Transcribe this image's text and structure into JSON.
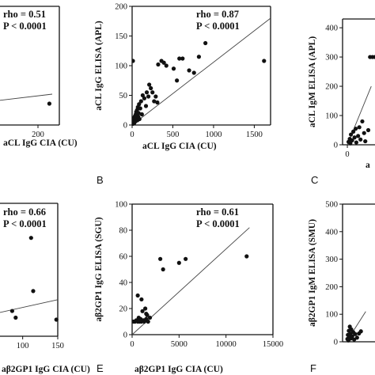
{
  "colors": {
    "ink": "#111111",
    "line": "#444444",
    "background": "#ffffff"
  },
  "chart_data": [
    {
      "panel": "A",
      "type": "scatter",
      "letter": "",
      "xlabel": "aCL IgG CIA (CU)",
      "ylabel": "",
      "xlim": [
        -40,
        260
      ],
      "ylim": [
        0,
        200
      ],
      "xticks": [
        200
      ],
      "yticks": [],
      "stats": [
        "rho = 0.51",
        "P < 0.0001"
      ],
      "trend": {
        "x0": 0,
        "y0": 35,
        "x1": 240,
        "y1": 52
      },
      "points": [
        {
          "x": 5,
          "y": 42
        },
        {
          "x": 232,
          "y": 36
        }
      ]
    },
    {
      "panel": "B",
      "type": "scatter",
      "letter": "B",
      "xlabel": "aCL IgG CIA (CU)",
      "ylabel": "aCL IgG ELISA (APL)",
      "xlim": [
        0,
        1700
      ],
      "ylim": [
        0,
        200
      ],
      "xticks": [
        0,
        500,
        1000,
        1500
      ],
      "yticks": [
        0,
        50,
        100,
        150,
        200
      ],
      "stats": [
        "rho = 0.87",
        "P < 0.0001"
      ],
      "trend": {
        "x0": 0,
        "y0": 0,
        "x1": 1700,
        "y1": 180
      },
      "points": [
        {
          "x": 8,
          "y": 2
        },
        {
          "x": 12,
          "y": 5
        },
        {
          "x": 15,
          "y": 8
        },
        {
          "x": 20,
          "y": 12
        },
        {
          "x": 25,
          "y": 3
        },
        {
          "x": 30,
          "y": 10
        },
        {
          "x": 35,
          "y": 15
        },
        {
          "x": 40,
          "y": 6
        },
        {
          "x": 45,
          "y": 18
        },
        {
          "x": 50,
          "y": 22
        },
        {
          "x": 55,
          "y": 12
        },
        {
          "x": 60,
          "y": 25
        },
        {
          "x": 65,
          "y": 8
        },
        {
          "x": 70,
          "y": 30
        },
        {
          "x": 75,
          "y": 14
        },
        {
          "x": 80,
          "y": 20
        },
        {
          "x": 85,
          "y": 35
        },
        {
          "x": 90,
          "y": 10
        },
        {
          "x": 100,
          "y": 28
        },
        {
          "x": 110,
          "y": 40
        },
        {
          "x": 120,
          "y": 18
        },
        {
          "x": 130,
          "y": 50
        },
        {
          "x": 150,
          "y": 45
        },
        {
          "x": 170,
          "y": 32
        },
        {
          "x": 180,
          "y": 55
        },
        {
          "x": 200,
          "y": 48
        },
        {
          "x": 210,
          "y": 68
        },
        {
          "x": 230,
          "y": 62
        },
        {
          "x": 250,
          "y": 55
        },
        {
          "x": 270,
          "y": 40
        },
        {
          "x": 290,
          "y": 48
        },
        {
          "x": 310,
          "y": 38
        },
        {
          "x": 320,
          "y": 102
        },
        {
          "x": 360,
          "y": 108
        },
        {
          "x": 390,
          "y": 105
        },
        {
          "x": 420,
          "y": 100
        },
        {
          "x": 510,
          "y": 95
        },
        {
          "x": 550,
          "y": 75
        },
        {
          "x": 580,
          "y": 112
        },
        {
          "x": 620,
          "y": 112
        },
        {
          "x": 700,
          "y": 92
        },
        {
          "x": 760,
          "y": 88
        },
        {
          "x": 820,
          "y": 115
        },
        {
          "x": 900,
          "y": 138
        },
        {
          "x": 10,
          "y": 108
        },
        {
          "x": 1620,
          "y": 108
        }
      ]
    },
    {
      "panel": "C",
      "type": "scatter",
      "letter": "C",
      "xlabel": "a",
      "ylabel": "aCL IgM ELISA (APL)",
      "xlim": [
        -8,
        160
      ],
      "ylim": [
        0,
        430
      ],
      "xticks": [
        0
      ],
      "yticks": [
        0,
        100,
        200,
        300,
        400
      ],
      "stats": [],
      "trend": {
        "x0": 0,
        "y0": 0,
        "x1": 40,
        "y1": 200
      },
      "points": [
        {
          "x": 2,
          "y": 10
        },
        {
          "x": 4,
          "y": 20
        },
        {
          "x": 5,
          "y": 5
        },
        {
          "x": 6,
          "y": 35
        },
        {
          "x": 8,
          "y": 15
        },
        {
          "x": 10,
          "y": 45
        },
        {
          "x": 12,
          "y": 25
        },
        {
          "x": 14,
          "y": 55
        },
        {
          "x": 15,
          "y": 8
        },
        {
          "x": 18,
          "y": 30
        },
        {
          "x": 20,
          "y": 60
        },
        {
          "x": 22,
          "y": 18
        },
        {
          "x": 25,
          "y": 80
        },
        {
          "x": 28,
          "y": 40
        },
        {
          "x": 30,
          "y": 12
        },
        {
          "x": 35,
          "y": 50
        },
        {
          "x": 38,
          "y": 300
        },
        {
          "x": 42,
          "y": 300
        },
        {
          "x": 46,
          "y": 300
        },
        {
          "x": 75,
          "y": 300
        },
        {
          "x": 80,
          "y": 300
        }
      ]
    },
    {
      "panel": "D",
      "type": "scatter",
      "letter": "",
      "xlabel": "aβ2GP1 IgG CIA (CU)",
      "ylabel": "",
      "xlim": [
        0,
        150
      ],
      "ylim": [
        0,
        200
      ],
      "xticks": [
        100,
        150
      ],
      "yticks": [],
      "stats": [
        "rho = 0.66",
        "P < 0.0001"
      ],
      "trend": {
        "x0": 0,
        "y0": 20,
        "x1": 150,
        "y1": 55
      },
      "points": [
        {
          "x": 85,
          "y": 38
        },
        {
          "x": 90,
          "y": 28
        },
        {
          "x": 112,
          "y": 148
        },
        {
          "x": 115,
          "y": 68
        },
        {
          "x": 148,
          "y": 25
        }
      ]
    },
    {
      "panel": "E",
      "type": "scatter",
      "letter": "E",
      "xlabel": "aβ2GP1 IgG CIA (CU)",
      "ylabel": "aβ2GP1 IgG ELISA (SGU)",
      "xlim": [
        0,
        15000
      ],
      "ylim": [
        0,
        100
      ],
      "xticks": [
        0,
        5000,
        10000,
        15000
      ],
      "yticks": [
        0,
        20,
        40,
        60,
        80,
        100
      ],
      "stats": [
        "rho = 0.61",
        "P < 0.0001"
      ],
      "trend": {
        "x0": 0,
        "y0": 0,
        "x1": 12500,
        "y1": 82
      },
      "points": [
        {
          "x": 150,
          "y": 10
        },
        {
          "x": 300,
          "y": 10
        },
        {
          "x": 450,
          "y": 11
        },
        {
          "x": 600,
          "y": 10
        },
        {
          "x": 700,
          "y": 13
        },
        {
          "x": 800,
          "y": 10
        },
        {
          "x": 900,
          "y": 12
        },
        {
          "x": 1000,
          "y": 10
        },
        {
          "x": 1100,
          "y": 18
        },
        {
          "x": 1200,
          "y": 11
        },
        {
          "x": 1300,
          "y": 10
        },
        {
          "x": 1400,
          "y": 20
        },
        {
          "x": 1500,
          "y": 12
        },
        {
          "x": 1600,
          "y": 15
        },
        {
          "x": 1700,
          "y": 10
        },
        {
          "x": 1900,
          "y": 13
        },
        {
          "x": 600,
          "y": 30
        },
        {
          "x": 1000,
          "y": 27
        },
        {
          "x": 1500,
          "y": 16
        },
        {
          "x": 3000,
          "y": 58
        },
        {
          "x": 3300,
          "y": 50
        },
        {
          "x": 5000,
          "y": 55
        },
        {
          "x": 5700,
          "y": 58
        },
        {
          "x": 12200,
          "y": 60
        }
      ]
    },
    {
      "panel": "F",
      "type": "scatter",
      "letter": "F",
      "xlabel": "",
      "ylabel": "aβ2GP1 IgM ELISA (SMU)",
      "xlim": [
        -8,
        200
      ],
      "ylim": [
        0,
        500
      ],
      "xticks": [],
      "yticks": [
        0,
        100,
        200,
        300,
        400,
        500
      ],
      "stats": [],
      "trend": {
        "x0": 0,
        "y0": 0,
        "x1": 40,
        "y1": 110
      },
      "points": [
        {
          "x": 2,
          "y": 10
        },
        {
          "x": 3,
          "y": 25
        },
        {
          "x": 4,
          "y": 5
        },
        {
          "x": 5,
          "y": 40
        },
        {
          "x": 6,
          "y": 18
        },
        {
          "x": 7,
          "y": 55
        },
        {
          "x": 8,
          "y": 30
        },
        {
          "x": 9,
          "y": 12
        },
        {
          "x": 10,
          "y": 45
        },
        {
          "x": 12,
          "y": 20
        },
        {
          "x": 14,
          "y": 35
        },
        {
          "x": 16,
          "y": 8
        },
        {
          "x": 18,
          "y": 28
        },
        {
          "x": 22,
          "y": 15
        },
        {
          "x": 26,
          "y": 30
        },
        {
          "x": 30,
          "y": 38
        }
      ]
    }
  ]
}
